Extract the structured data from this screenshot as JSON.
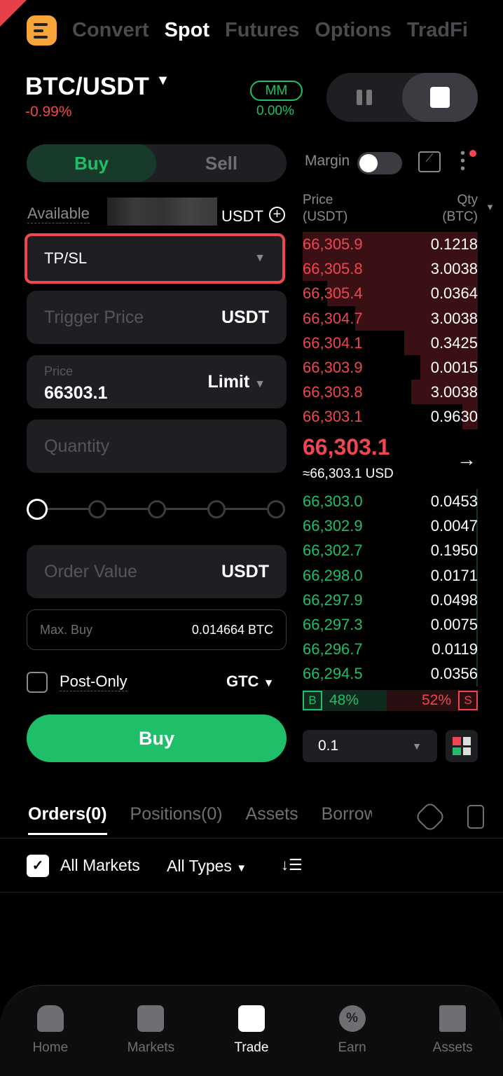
{
  "topnav": {
    "items": [
      "Convert",
      "Spot",
      "Futures",
      "Options",
      "TradFi"
    ],
    "active": "Spot"
  },
  "pair": {
    "symbol": "BTC/USDT",
    "change": "-0.99%",
    "mm_label": "MM",
    "mm_value": "0.00%"
  },
  "side": {
    "buy": "Buy",
    "sell": "Sell",
    "active": "Buy"
  },
  "margin": {
    "label": "Margin",
    "enabled": false
  },
  "form": {
    "available_label": "Available",
    "available_unit": "USDT",
    "order_type": "TP/SL",
    "trigger_placeholder": "Trigger Price",
    "trigger_unit": "USDT",
    "price_label": "Price",
    "price_value": "66303.1",
    "price_type": "Limit",
    "quantity_placeholder": "Quantity",
    "slider_percent": 0,
    "order_value_placeholder": "Order Value",
    "order_value_unit": "USDT",
    "max_buy_label": "Max. Buy",
    "max_buy_value": "0.014664 BTC",
    "post_only": "Post-Only",
    "tif": "GTC",
    "submit": "Buy"
  },
  "orderbook": {
    "price_header": "Price",
    "price_unit": "(USDT)",
    "qty_header": "Qty",
    "qty_unit": "(BTC)",
    "asks": [
      {
        "p": "66,305.9",
        "q": "0.1218",
        "d": 1.0
      },
      {
        "p": "66,305.8",
        "q": "3.0038",
        "d": 1.0
      },
      {
        "p": "66,305.4",
        "q": "0.0364",
        "d": 0.86
      },
      {
        "p": "66,304.7",
        "q": "3.0038",
        "d": 0.7
      },
      {
        "p": "66,304.1",
        "q": "0.3425",
        "d": 0.42
      },
      {
        "p": "66,303.9",
        "q": "0.0015",
        "d": 0.33
      },
      {
        "p": "66,303.8",
        "q": "3.0038",
        "d": 0.38
      },
      {
        "p": "66,303.1",
        "q": "0.9630",
        "d": 0.09
      }
    ],
    "last": "66,303.1",
    "last_usd": "≈66,303.1 USD",
    "bids": [
      {
        "p": "66,303.0",
        "q": "0.0453",
        "d": 0.01
      },
      {
        "p": "66,302.9",
        "q": "0.0047",
        "d": 0.01
      },
      {
        "p": "66,302.7",
        "q": "0.1950",
        "d": 0.01
      },
      {
        "p": "66,298.0",
        "q": "0.0171",
        "d": 0.01
      },
      {
        "p": "66,297.9",
        "q": "0.0498",
        "d": 0.01
      },
      {
        "p": "66,297.3",
        "q": "0.0075",
        "d": 0.01
      },
      {
        "p": "66,296.7",
        "q": "0.0119",
        "d": 0.01
      },
      {
        "p": "66,294.5",
        "q": "0.0356",
        "d": 0.01
      }
    ],
    "buy_pct": "48%",
    "sell_pct": "52%",
    "buy_tag": "B",
    "sell_tag": "S",
    "precision": "0.1"
  },
  "bottom_tabs": [
    "Orders(0)",
    "Positions(0)",
    "Assets",
    "Borrow"
  ],
  "filters": {
    "all_markets": "All Markets",
    "all_types": "All Types"
  },
  "nav": [
    "Home",
    "Markets",
    "Trade",
    "Earn",
    "Assets"
  ],
  "colors": {
    "red": "#f0464f",
    "green": "#1fbf6a",
    "accent": "#f7a53a"
  }
}
